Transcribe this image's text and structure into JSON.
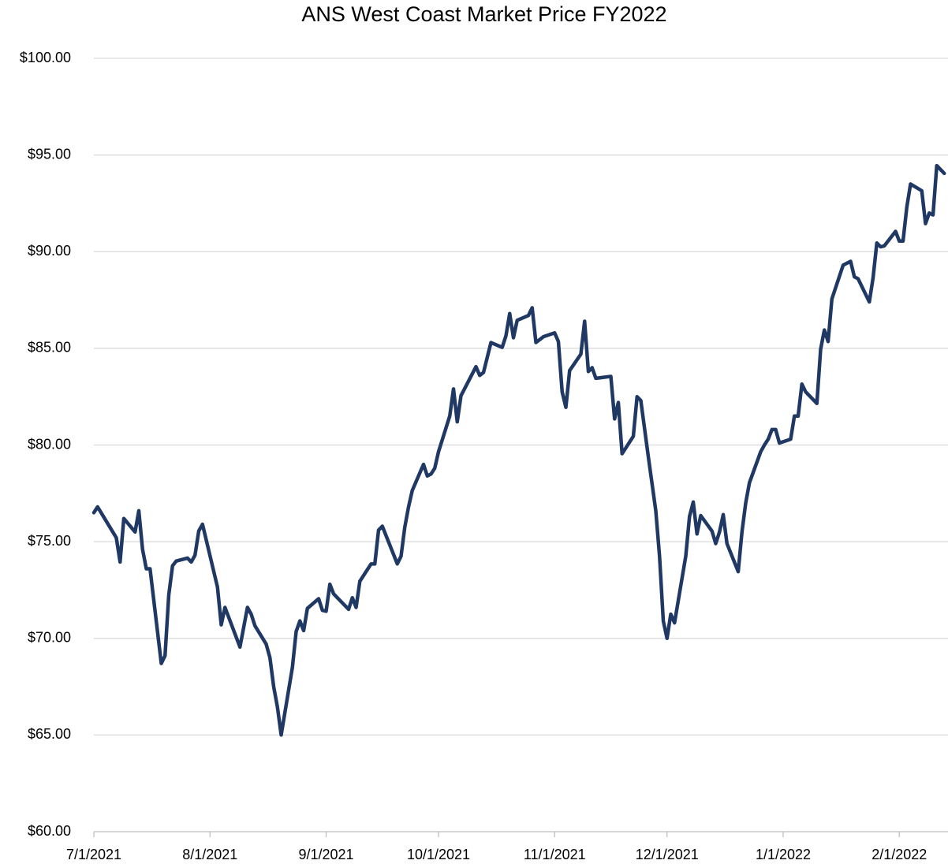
{
  "chart_data": {
    "type": "line",
    "title": "ANS West Coast Market Price FY2022",
    "color": "#203864",
    "grid": true,
    "x": [
      "2021-07-01",
      "2021-07-02",
      "2021-07-07",
      "2021-07-08",
      "2021-07-09",
      "2021-07-12",
      "2021-07-13",
      "2021-07-14",
      "2021-07-15",
      "2021-07-16",
      "2021-07-19",
      "2021-07-20",
      "2021-07-21",
      "2021-07-22",
      "2021-07-23",
      "2021-07-26",
      "2021-07-27",
      "2021-07-28",
      "2021-07-29",
      "2021-07-30",
      "2021-08-03",
      "2021-08-04",
      "2021-08-05",
      "2021-08-09",
      "2021-08-11",
      "2021-08-12",
      "2021-08-13",
      "2021-08-16",
      "2021-08-17",
      "2021-08-18",
      "2021-08-19",
      "2021-08-20",
      "2021-08-23",
      "2021-08-24",
      "2021-08-25",
      "2021-08-26",
      "2021-08-27",
      "2021-08-30",
      "2021-08-31",
      "2021-09-01",
      "2021-09-02",
      "2021-09-03",
      "2021-09-07",
      "2021-09-08",
      "2021-09-09",
      "2021-09-10",
      "2021-09-13",
      "2021-09-14",
      "2021-09-15",
      "2021-09-16",
      "2021-09-20",
      "2021-09-21",
      "2021-09-22",
      "2021-09-23",
      "2021-09-24",
      "2021-09-27",
      "2021-09-28",
      "2021-09-29",
      "2021-09-30",
      "2021-10-01",
      "2021-10-04",
      "2021-10-05",
      "2021-10-06",
      "2021-10-07",
      "2021-10-11",
      "2021-10-12",
      "2021-10-13",
      "2021-10-15",
      "2021-10-18",
      "2021-10-19",
      "2021-10-20",
      "2021-10-21",
      "2021-10-22",
      "2021-10-25",
      "2021-10-26",
      "2021-10-27",
      "2021-10-29",
      "2021-11-01",
      "2021-11-02",
      "2021-11-03",
      "2021-11-04",
      "2021-11-05",
      "2021-11-08",
      "2021-11-09",
      "2021-11-10",
      "2021-11-11",
      "2021-11-12",
      "2021-11-16",
      "2021-11-17",
      "2021-11-18",
      "2021-11-19",
      "2021-11-22",
      "2021-11-23",
      "2021-11-24",
      "2021-11-26",
      "2021-11-28",
      "2021-11-29",
      "2021-11-30",
      "2021-12-01",
      "2021-12-02",
      "2021-12-03",
      "2021-12-06",
      "2021-12-07",
      "2021-12-08",
      "2021-12-09",
      "2021-12-10",
      "2021-12-13",
      "2021-12-14",
      "2021-12-15",
      "2021-12-16",
      "2021-12-17",
      "2021-12-20",
      "2021-12-21",
      "2021-12-22",
      "2021-12-23",
      "2021-12-26",
      "2021-12-27",
      "2021-12-28",
      "2021-12-29",
      "2021-12-30",
      "2021-12-31",
      "2022-01-03",
      "2022-01-04",
      "2022-01-05",
      "2022-01-06",
      "2022-01-07",
      "2022-01-10",
      "2022-01-11",
      "2022-01-12",
      "2022-01-13",
      "2022-01-14",
      "2022-01-17",
      "2022-01-19",
      "2022-01-20",
      "2022-01-21",
      "2022-01-24",
      "2022-01-25",
      "2022-01-26",
      "2022-01-27",
      "2022-01-28",
      "2022-01-31",
      "2022-02-01",
      "2022-02-02",
      "2022-02-03",
      "2022-02-04",
      "2022-02-07",
      "2022-02-08",
      "2022-02-09",
      "2022-02-10",
      "2022-02-11",
      "2022-02-13"
    ],
    "values": [
      76.5,
      76.8,
      75.2,
      73.95,
      76.2,
      75.5,
      76.6,
      74.6,
      73.6,
      73.6,
      68.7,
      69.1,
      72.25,
      73.75,
      74.0,
      74.15,
      73.95,
      74.3,
      75.55,
      75.9,
      72.65,
      70.7,
      71.6,
      69.55,
      71.6,
      71.25,
      70.65,
      69.7,
      69.0,
      67.5,
      66.45,
      65.0,
      68.5,
      70.35,
      70.9,
      70.4,
      71.55,
      72.05,
      71.45,
      71.4,
      72.8,
      72.3,
      71.5,
      72.1,
      71.6,
      72.95,
      73.85,
      73.85,
      75.6,
      75.8,
      73.85,
      74.25,
      75.75,
      76.8,
      77.65,
      79.0,
      78.4,
      78.5,
      78.8,
      79.65,
      81.5,
      82.9,
      81.2,
      82.55,
      84.05,
      83.6,
      83.75,
      85.3,
      85.05,
      85.65,
      86.8,
      85.55,
      86.45,
      86.7,
      87.1,
      85.3,
      85.6,
      85.8,
      85.35,
      82.75,
      81.95,
      83.85,
      84.7,
      86.4,
      83.8,
      84.0,
      83.45,
      83.55,
      81.35,
      82.2,
      79.55,
      80.45,
      82.5,
      82.3,
      79.4,
      76.6,
      74.25,
      70.9,
      70.0,
      71.25,
      70.8,
      74.25,
      76.3,
      77.05,
      75.4,
      76.35,
      75.55,
      74.9,
      75.5,
      76.4,
      74.9,
      73.45,
      75.5,
      77.0,
      78.05,
      79.65,
      80.0,
      80.3,
      80.8,
      80.8,
      80.1,
      80.3,
      81.5,
      81.5,
      83.15,
      82.75,
      82.15,
      84.95,
      85.95,
      85.35,
      87.55,
      89.3,
      89.5,
      88.7,
      88.6,
      87.4,
      88.65,
      90.45,
      90.25,
      90.3,
      91.05,
      90.55,
      90.55,
      92.3,
      93.5,
      93.15,
      91.45,
      92.0,
      91.9,
      94.45,
      94.05
    ],
    "xlim": [
      "2021-07-01",
      "2022-02-14"
    ],
    "xticks": [
      {
        "value": "2021-07-01",
        "label": "7/1/2021"
      },
      {
        "value": "2021-08-01",
        "label": "8/1/2021"
      },
      {
        "value": "2021-09-01",
        "label": "9/1/2021"
      },
      {
        "value": "2021-10-01",
        "label": "10/1/2021"
      },
      {
        "value": "2021-11-01",
        "label": "11/1/2021"
      },
      {
        "value": "2021-12-01",
        "label": "12/1/2021"
      },
      {
        "value": "2022-01-01",
        "label": "1/1/2022"
      },
      {
        "value": "2022-02-01",
        "label": "2/1/2022"
      }
    ],
    "ylim": [
      60,
      100
    ],
    "yticks": [
      {
        "value": 60,
        "label": "$60.00"
      },
      {
        "value": 65,
        "label": "$65.00"
      },
      {
        "value": 70,
        "label": "$70.00"
      },
      {
        "value": 75,
        "label": "$75.00"
      },
      {
        "value": 80,
        "label": "$80.00"
      },
      {
        "value": 85,
        "label": "$85.00"
      },
      {
        "value": 90,
        "label": "$90.00"
      },
      {
        "value": 95,
        "label": "$95.00"
      },
      {
        "value": 100,
        "label": "$100.00"
      }
    ]
  }
}
